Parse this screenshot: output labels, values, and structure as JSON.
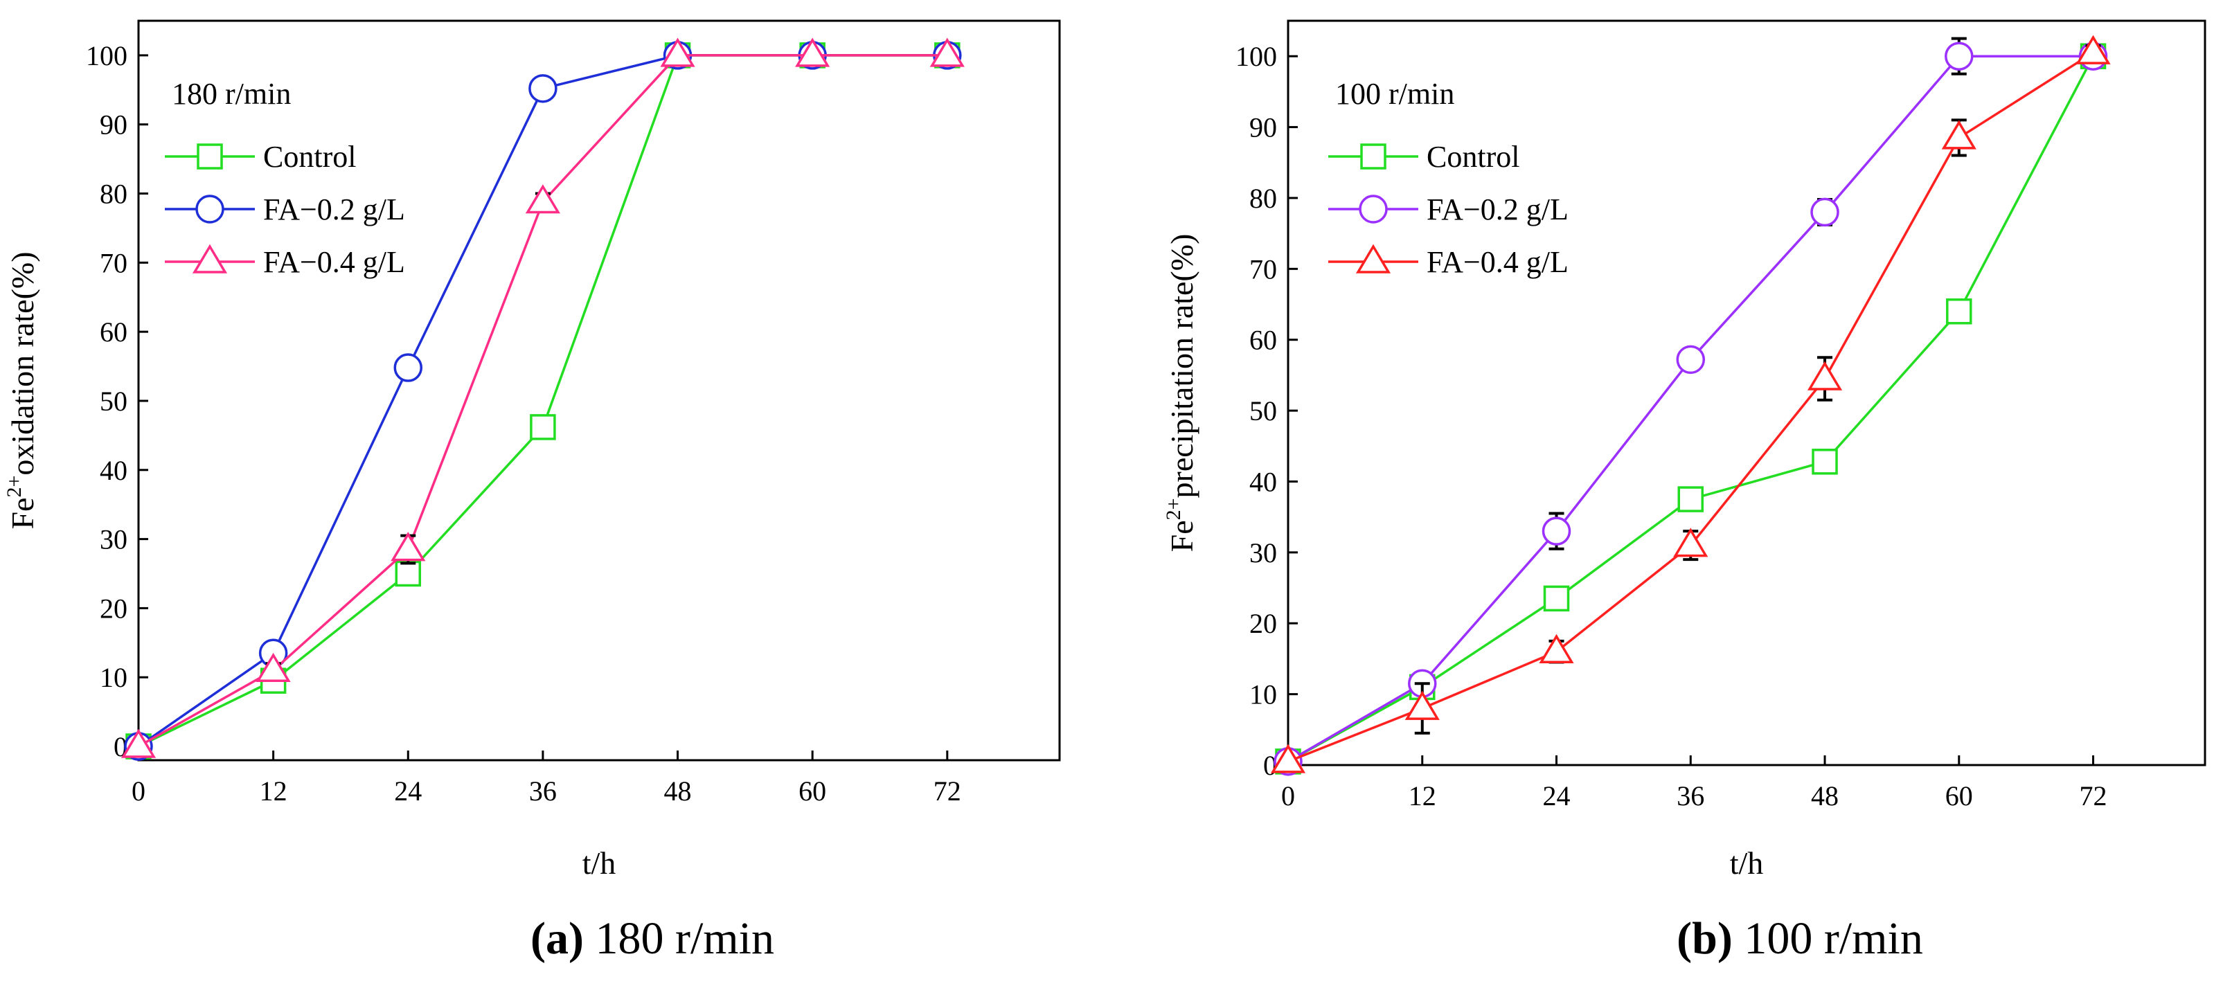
{
  "chart_data": [
    {
      "type": "line",
      "title": "",
      "condition_label": "180 r/min",
      "xlabel": "t/h",
      "ylabel": {
        "prefix": "Fe",
        "sup": "2+",
        "rest": "oxidation rate(%)"
      },
      "xlim": [
        0,
        82
      ],
      "ylim": [
        -2,
        105
      ],
      "x_ticks": [
        0,
        12,
        24,
        36,
        48,
        60,
        72
      ],
      "y_ticks": [
        0,
        10,
        20,
        30,
        40,
        50,
        60,
        70,
        80,
        90,
        100
      ],
      "legend_position": "upper-left",
      "caption": {
        "letter": "(a)",
        "text": " 180 r/min"
      },
      "series": [
        {
          "name": "Control",
          "color": "#22dd22",
          "marker": "square",
          "x": [
            0,
            12,
            24,
            36,
            48,
            60,
            72
          ],
          "y": [
            0,
            9.5,
            25,
            46.2,
            100,
            100,
            100
          ],
          "err": [
            0,
            1.0,
            1.0,
            1.2,
            0.5,
            0.5,
            0.5
          ]
        },
        {
          "name": "FA−0.2 g/L",
          "color": "#1f2fd8",
          "marker": "circle",
          "x": [
            0,
            12,
            24,
            36,
            48,
            60,
            72
          ],
          "y": [
            0,
            13.5,
            54.8,
            95.2,
            100,
            100,
            100
          ],
          "err": [
            0,
            0.8,
            1.2,
            1.2,
            0.5,
            0.5,
            0.5
          ]
        },
        {
          "name": "FA−0.4 g/L",
          "color": "#ff2d86",
          "marker": "triangle",
          "x": [
            0,
            12,
            24,
            36,
            48,
            60,
            72
          ],
          "y": [
            0,
            11,
            28.5,
            78.8,
            100,
            100,
            100
          ],
          "err": [
            0,
            1.0,
            2.0,
            1.2,
            0.5,
            0.5,
            0.5
          ]
        }
      ]
    },
    {
      "type": "line",
      "title": "",
      "condition_label": "100 r/min",
      "xlabel": "t/h",
      "ylabel": {
        "prefix": "Fe",
        "sup": "2+",
        "rest": "precipitation rate(%)"
      },
      "xlim": [
        0,
        82
      ],
      "ylim": [
        0,
        105
      ],
      "x_ticks": [
        0,
        12,
        24,
        36,
        48,
        60,
        72
      ],
      "y_ticks": [
        0,
        10,
        20,
        30,
        40,
        50,
        60,
        70,
        80,
        90,
        100
      ],
      "legend_position": "upper-left",
      "caption": {
        "letter": "(b)",
        "text": " 100 r/min"
      },
      "series": [
        {
          "name": "Control",
          "color": "#22dd22",
          "marker": "square",
          "x": [
            0,
            12,
            24,
            36,
            48,
            60,
            72
          ],
          "y": [
            0.5,
            11,
            23.5,
            37.5,
            42.8,
            64,
            100
          ],
          "err": [
            0,
            1.0,
            1.5,
            1.5,
            1.5,
            1.5,
            0.8
          ]
        },
        {
          "name": "FA−0.2 g/L",
          "color": "#9b30ff",
          "marker": "circle",
          "x": [
            0,
            12,
            24,
            36,
            48,
            60,
            72
          ],
          "y": [
            0.5,
            11.5,
            33,
            57.2,
            78,
            100,
            100
          ],
          "err": [
            0,
            1.2,
            2.5,
            1.5,
            1.8,
            2.5,
            1.0
          ]
        },
        {
          "name": "FA−0.4 g/L",
          "color": "#ff2020",
          "marker": "triangle",
          "x": [
            0,
            12,
            24,
            36,
            48,
            60,
            72
          ],
          "y": [
            0.5,
            8,
            16,
            31,
            54.5,
            88.5,
            100.5
          ],
          "err": [
            0,
            3.5,
            1.5,
            2.0,
            3.0,
            2.5,
            1.0
          ]
        }
      ]
    }
  ]
}
